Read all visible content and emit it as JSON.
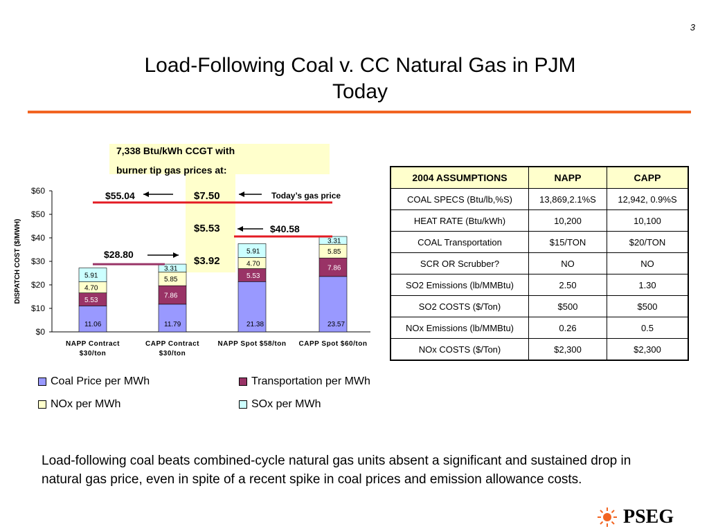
{
  "page_number": "3",
  "title_line1": "Load-Following Coal v. CC Natural Gas in PJM",
  "title_line2": "Today",
  "gas_box": {
    "line1": "7,338 Btu/kWh CCGT with",
    "line2": "burner tip gas prices at:",
    "prices": [
      "$7.50",
      "$5.53",
      "$3.92"
    ]
  },
  "annotations": {
    "cost_5504": "$55.04",
    "cost_4058": "$40.58",
    "cost_2880": "$28.80",
    "todays_gas_price": "Today’s gas price"
  },
  "chart_data": {
    "type": "bar",
    "stacked": true,
    "ylabel": "DISPATCH COST ($/MWH)",
    "ylim": [
      0,
      60
    ],
    "yticks": [
      "$0",
      "$10",
      "$20",
      "$30",
      "$40",
      "$50",
      "$60"
    ],
    "categories": [
      [
        "NAPP Contract",
        "$30/ton"
      ],
      [
        "CAPP Contract",
        "$30/ton"
      ],
      [
        "NAPP Spot $58/ton"
      ],
      [
        "CAPP Spot $60/ton"
      ]
    ],
    "series": [
      {
        "name": "Coal Price per MWh",
        "color": "#9999ff",
        "values": [
          11.06,
          11.79,
          21.38,
          23.57
        ],
        "labels": [
          "11.06",
          "11.79",
          "21.38",
          "23.57"
        ]
      },
      {
        "name": "Transportation per MWh",
        "color": "#993366",
        "values": [
          5.53,
          7.86,
          5.53,
          7.86
        ],
        "labels": [
          "5.53",
          "7.86",
          "5.53",
          "7.86"
        ]
      },
      {
        "name": "NOx per MWh",
        "color": "#ffffcc",
        "values": [
          4.7,
          5.85,
          4.7,
          5.85
        ],
        "labels": [
          "4.70",
          "5.85",
          "4.70",
          "5.85"
        ]
      },
      {
        "name": "SOx per MWh",
        "color": "#ccffff",
        "values": [
          5.91,
          3.31,
          5.91,
          3.31
        ],
        "labels": [
          "5.91",
          "3.31",
          "5.91",
          "3.31"
        ]
      }
    ],
    "reference_lines": [
      {
        "value": 55.04,
        "color": "#e31b23"
      },
      {
        "value": 40.58,
        "color": "#e31b23"
      },
      {
        "value": 28.8,
        "color": "#993366"
      }
    ]
  },
  "table": {
    "headers": [
      "2004 ASSUMPTIONS",
      "NAPP",
      "CAPP"
    ],
    "rows": [
      [
        "COAL SPECS (Btu/lb,%S)",
        "13,869,2.1%S",
        "12,942, 0.9%S"
      ],
      [
        "HEAT RATE (Btu/kWh)",
        "10,200",
        "10,100"
      ],
      [
        "COAL Transportation",
        "$15/TON",
        "$20/TON"
      ],
      [
        "SCR OR Scrubber?",
        "NO",
        "NO"
      ],
      [
        "SO2 Emissions (lb/MMBtu)",
        "2.50",
        "1.30"
      ],
      [
        "SO2 COSTS ($/Ton)",
        "$500",
        "$500"
      ],
      [
        "NOx Emissions (lb/MMBtu)",
        "0.26",
        "0.5"
      ],
      [
        "NOx COSTS ($/Ton)",
        "$2,300",
        "$2,300"
      ]
    ]
  },
  "summary": "Load-following coal beats combined-cycle natural gas units absent a significant and sustained drop in natural gas price, even in spite of a recent spike in coal prices and emission allowance costs.",
  "logo_text": "PSEG",
  "colors": {
    "accent_rule": "#f26522",
    "highlight": "#ffffcc"
  }
}
